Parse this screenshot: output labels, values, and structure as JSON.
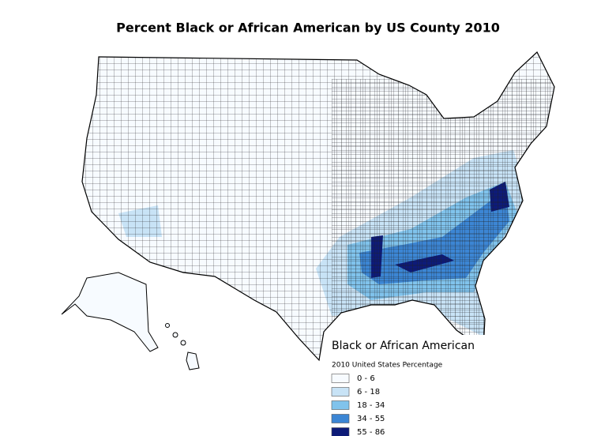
{
  "title": "Percent Black or African American by US County 2010",
  "legend": {
    "title": "Black or African American",
    "subtitle": "2010 United States Percentage",
    "classes": [
      {
        "label": "0 - 6",
        "color": "#f7fbff"
      },
      {
        "label": "6 - 18",
        "color": "#c8e3f6"
      },
      {
        "label": "18 - 34",
        "color": "#80c3ec"
      },
      {
        "label": "34 - 55",
        "color": "#3c86d4"
      },
      {
        "label": "55 - 86",
        "color": "#0d1b78"
      }
    ]
  }
}
